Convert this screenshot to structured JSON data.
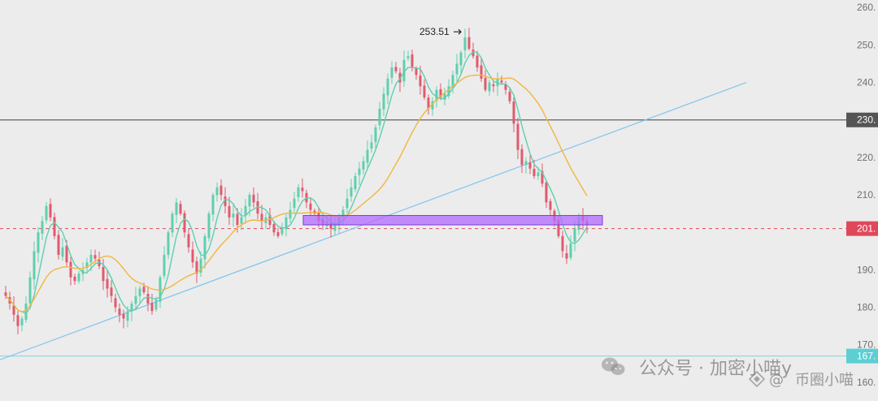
{
  "chart_data": {
    "type": "candlestick",
    "title": "",
    "xlabel": "",
    "ylabel": "",
    "ylim": [
      155,
      262
    ],
    "y_ticks": [
      {
        "value": 260,
        "label": "260."
      },
      {
        "value": 250,
        "label": "250."
      },
      {
        "value": 240,
        "label": "240."
      },
      {
        "value": 230,
        "label": "230."
      },
      {
        "value": 220,
        "label": "220."
      },
      {
        "value": 210,
        "label": "210."
      },
      {
        "value": 200,
        "label": "200."
      },
      {
        "value": 190,
        "label": "190."
      },
      {
        "value": 180,
        "label": "180."
      },
      {
        "value": 170,
        "label": "170."
      },
      {
        "value": 160,
        "label": "160."
      }
    ],
    "grid": false,
    "series": [
      {
        "kind": "close",
        "values": [
          183,
          181,
          178,
          175,
          177,
          181,
          188,
          195,
          200,
          203,
          207,
          204,
          199,
          194,
          196,
          192,
          188,
          187,
          189,
          190,
          192,
          194,
          193,
          191,
          187,
          185,
          183,
          180,
          178,
          177,
          179,
          181,
          183,
          185,
          184,
          181,
          179,
          182,
          188,
          194,
          200,
          205,
          208,
          205,
          200,
          196,
          192,
          189,
          193,
          199,
          205,
          210,
          212,
          210,
          207,
          204,
          205,
          202,
          204,
          207,
          210,
          208,
          205,
          203,
          204,
          202,
          200,
          199,
          201,
          204,
          206,
          209,
          212,
          211,
          208,
          206,
          205,
          203,
          202,
          203,
          201,
          202,
          204,
          206,
          209,
          212,
          215,
          217,
          219,
          222,
          224,
          228,
          233,
          237,
          241,
          244,
          243,
          240,
          246,
          247,
          244,
          242,
          239,
          236,
          233,
          235,
          238,
          236,
          237,
          239,
          242,
          245,
          248,
          252,
          249,
          247,
          244,
          241,
          238,
          240,
          239,
          241,
          240,
          238,
          235,
          229,
          222,
          218,
          219,
          217,
          215,
          216,
          213,
          208,
          206,
          203,
          199,
          195,
          193,
          197,
          201,
          204,
          203,
          202
        ]
      },
      {
        "kind": "ma_short",
        "color": "#5fcfae"
      },
      {
        "kind": "ma_long",
        "color": "#f2b640"
      }
    ],
    "annotations": {
      "peak_label": "253.51",
      "peak_value": 253.51,
      "horizontal_line_price": 230,
      "horizontal_line_label": "230.",
      "current_price_line": 201,
      "current_price_label": "201.",
      "support_line_price": 167,
      "support_line_label": "167.",
      "zone_low": 202,
      "zone_high": 204.5
    },
    "colors": {
      "up": "#5fcfae",
      "down": "#e05a6e",
      "ma_short": "#5fcfae",
      "ma_long": "#f2b640",
      "trendline": "#7fc4ee",
      "horizontal_line": "#606060",
      "current_price_line": "#e0485a",
      "support_line": "#7ed4d6",
      "zone_fill": "#b46bff",
      "zone_stroke": "#7a3be0"
    }
  },
  "watermark": {
    "channel_text": "公众号 · 加密小喵y",
    "account_text": "币圈小喵"
  }
}
